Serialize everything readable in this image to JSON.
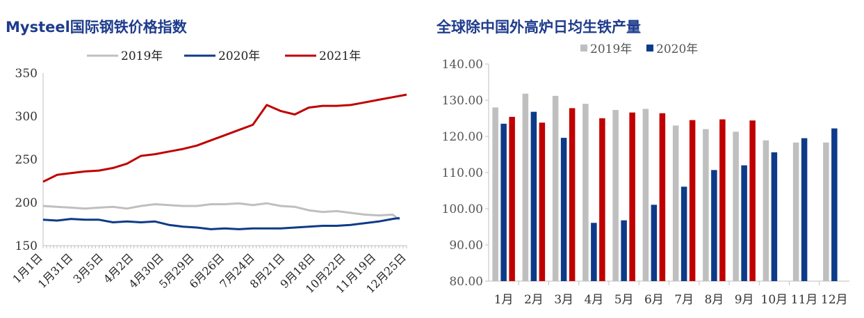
{
  "chart_data": [
    {
      "type": "line",
      "title": "Mysteel国际钢铁价格指数",
      "xlabel": "",
      "ylabel": "",
      "ylim": [
        150,
        350
      ],
      "yticks": [
        150,
        200,
        250,
        300,
        350
      ],
      "x_ticks": [
        "1月1日",
        "1月31日",
        "3月5日",
        "4月2日",
        "4月30日",
        "5月29日",
        "6月26日",
        "7月24日",
        "8月21日",
        "9月18日",
        "10月22日",
        "11月19日",
        "12月25日"
      ],
      "grid": false,
      "legend": "top",
      "series": [
        {
          "name": "2019年",
          "color": "#bfbfbf",
          "x": [
            0,
            2,
            4,
            6,
            8,
            10,
            12,
            14,
            16,
            18,
            20,
            22,
            24,
            26,
            28,
            30,
            32,
            34,
            36,
            38,
            40,
            42,
            44,
            46,
            48,
            50,
            51
          ],
          "values": [
            196,
            195,
            194,
            193,
            194,
            195,
            193,
            196,
            198,
            197,
            196,
            196,
            198,
            198,
            199,
            197,
            199,
            196,
            195,
            191,
            189,
            190,
            188,
            186,
            185,
            186,
            180
          ]
        },
        {
          "name": "2020年",
          "color": "#0e3a8a",
          "x": [
            0,
            2,
            4,
            6,
            8,
            10,
            12,
            14,
            16,
            18,
            20,
            22,
            24,
            26,
            28,
            30,
            32,
            34,
            36,
            38,
            40,
            42,
            44,
            46,
            48,
            50,
            51
          ],
          "values": [
            180,
            179,
            181,
            180,
            180,
            177,
            178,
            177,
            178,
            174,
            172,
            171,
            169,
            170,
            169,
            170,
            170,
            170,
            171,
            172,
            173,
            173,
            174,
            176,
            178,
            181,
            182
          ]
        },
        {
          "name": "2021年",
          "color": "#c00000",
          "x": [
            0,
            2,
            4,
            6,
            8,
            10,
            12,
            14,
            16,
            18,
            20,
            22,
            24,
            26,
            28,
            30,
            32,
            34,
            36,
            38,
            40,
            42,
            44,
            46,
            48,
            50,
            52
          ],
          "values": [
            224,
            232,
            234,
            236,
            237,
            240,
            245,
            254,
            256,
            259,
            262,
            266,
            272,
            278,
            284,
            290,
            313,
            306,
            302,
            310,
            312,
            312,
            313,
            316,
            319,
            322,
            325
          ]
        }
      ]
    },
    {
      "type": "bar",
      "title": "全球除中国外高炉日均生铁产量",
      "xlabel": "",
      "ylabel": "",
      "ylim": [
        80,
        140
      ],
      "yticks": [
        "80.00",
        "90.00",
        "100.00",
        "110.00",
        "120.00",
        "130.00",
        "140.00"
      ],
      "grid": false,
      "legend": "top",
      "categories": [
        "1月",
        "2月",
        "3月",
        "4月",
        "5月",
        "6月",
        "7月",
        "8月",
        "9月",
        "10月",
        "11月",
        "12月"
      ],
      "series": [
        {
          "name": "2019年",
          "color": "#bfbfbf",
          "values": [
            128,
            131.8,
            131.2,
            129,
            127.3,
            127.6,
            123,
            122,
            121.3,
            118.9,
            118.3,
            118.3
          ]
        },
        {
          "name": "2020年",
          "color": "#0e3a8a",
          "values": [
            123.5,
            126.8,
            119.6,
            96.1,
            96.8,
            101.1,
            106.1,
            110.7,
            112,
            115.6,
            119.5,
            122.2
          ]
        },
        {
          "color": "#c00000",
          "values": [
            125.4,
            123.8,
            127.8,
            125,
            126.6,
            126.4,
            124.5,
            124.7,
            124.4,
            null,
            null,
            null
          ]
        }
      ]
    }
  ]
}
